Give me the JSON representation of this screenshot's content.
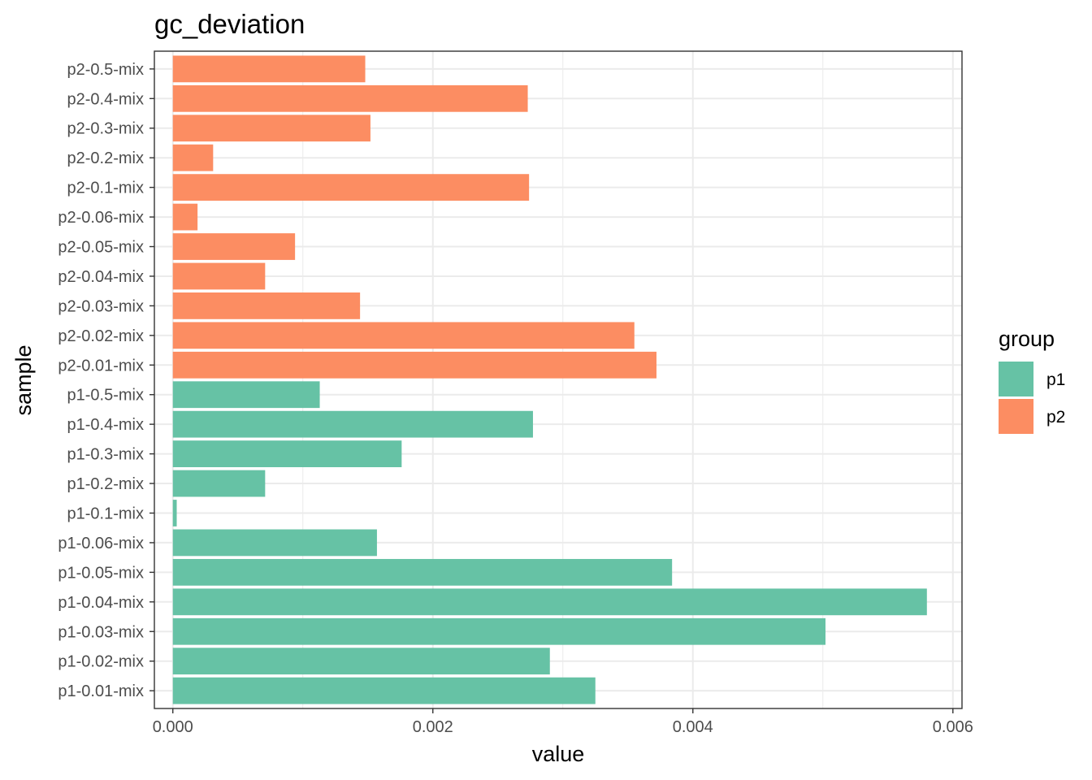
{
  "chart_data": {
    "type": "bar",
    "orientation": "horizontal",
    "title": "gc_deviation",
    "xlabel": "value",
    "ylabel": "sample",
    "xlim": [
      -0.000142,
      0.00607
    ],
    "x_ticks": [
      0,
      0.002,
      0.004,
      0.006
    ],
    "x_tick_labels": [
      "0.000",
      "0.002",
      "0.004",
      "0.006"
    ],
    "grid": true,
    "legend": {
      "title": "group",
      "position": "right",
      "entries": [
        {
          "name": "p1",
          "color": "#66c2a5"
        },
        {
          "name": "p2",
          "color": "#fc8d62"
        }
      ]
    },
    "bars": [
      {
        "category": "p1-0.01-mix",
        "group": "p1",
        "value": 0.00325
      },
      {
        "category": "p1-0.02-mix",
        "group": "p1",
        "value": 0.0029
      },
      {
        "category": "p1-0.03-mix",
        "group": "p1",
        "value": 0.00502
      },
      {
        "category": "p1-0.04-mix",
        "group": "p1",
        "value": 0.0058
      },
      {
        "category": "p1-0.05-mix",
        "group": "p1",
        "value": 0.00384
      },
      {
        "category": "p1-0.06-mix",
        "group": "p1",
        "value": 0.00157
      },
      {
        "category": "p1-0.1-mix",
        "group": "p1",
        "value": 3e-05
      },
      {
        "category": "p1-0.2-mix",
        "group": "p1",
        "value": 0.00071
      },
      {
        "category": "p1-0.3-mix",
        "group": "p1",
        "value": 0.00176
      },
      {
        "category": "p1-0.4-mix",
        "group": "p1",
        "value": 0.00277
      },
      {
        "category": "p1-0.5-mix",
        "group": "p1",
        "value": 0.00113
      },
      {
        "category": "p2-0.01-mix",
        "group": "p2",
        "value": 0.00372
      },
      {
        "category": "p2-0.02-mix",
        "group": "p2",
        "value": 0.00355
      },
      {
        "category": "p2-0.03-mix",
        "group": "p2",
        "value": 0.00144
      },
      {
        "category": "p2-0.04-mix",
        "group": "p2",
        "value": 0.00071
      },
      {
        "category": "p2-0.05-mix",
        "group": "p2",
        "value": 0.00094
      },
      {
        "category": "p2-0.06-mix",
        "group": "p2",
        "value": 0.00019
      },
      {
        "category": "p2-0.1-mix",
        "group": "p2",
        "value": 0.00274
      },
      {
        "category": "p2-0.2-mix",
        "group": "p2",
        "value": 0.00031
      },
      {
        "category": "p2-0.3-mix",
        "group": "p2",
        "value": 0.00152
      },
      {
        "category": "p2-0.4-mix",
        "group": "p2",
        "value": 0.00273
      },
      {
        "category": "p2-0.5-mix",
        "group": "p2",
        "value": 0.00148
      }
    ]
  }
}
